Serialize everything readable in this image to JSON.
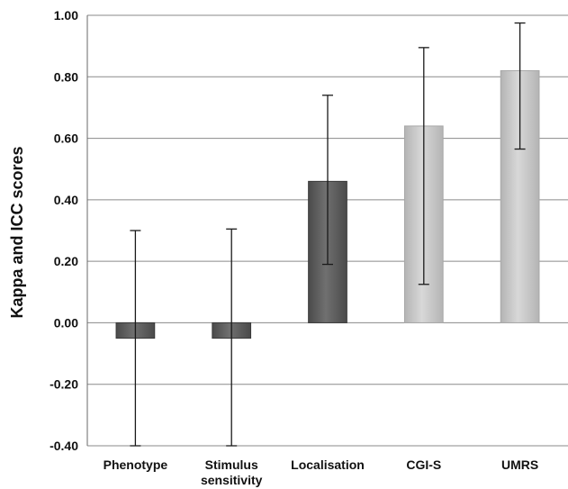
{
  "chart_data": {
    "type": "bar",
    "title": "",
    "xlabel": "",
    "ylabel": "Kappa and ICC scores",
    "ylim": [
      -0.4,
      1.0
    ],
    "yticks": [
      -0.4,
      -0.2,
      0.0,
      0.2,
      0.4,
      0.6,
      0.8,
      1.0
    ],
    "ytick_labels": [
      "-0.40",
      "-0.20",
      "0.00",
      "0.20",
      "0.40",
      "0.60",
      "0.80",
      "1.00"
    ],
    "grid": true,
    "legend": "none",
    "categories": [
      [
        "Phenotype"
      ],
      [
        "Stimulus",
        "sensitivity"
      ],
      [
        "Localisation"
      ],
      [
        "CGI-S"
      ],
      [
        "UMRS"
      ]
    ],
    "values": [
      -0.05,
      -0.05,
      0.46,
      0.64,
      0.82
    ],
    "error_low": [
      -0.4,
      -0.4,
      0.19,
      0.125,
      0.565
    ],
    "error_high": [
      0.3,
      0.305,
      0.74,
      0.895,
      0.975
    ],
    "colors": [
      "#5f5f5f",
      "#5f5f5f",
      "#5f5f5f",
      "#c6c6c6",
      "#c6c6c6"
    ]
  }
}
